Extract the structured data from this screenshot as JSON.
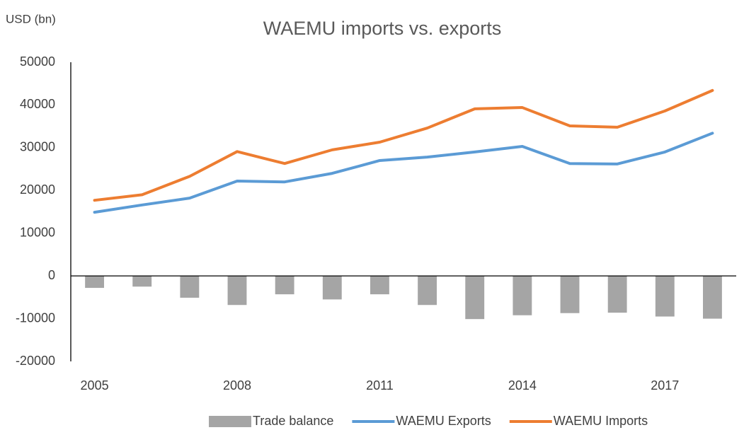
{
  "chart_data": {
    "type": "combo",
    "title": "WAEMU imports vs. exports",
    "y_axis_label": "USD (bn)",
    "categories": [
      "2005",
      null,
      null,
      "2008",
      null,
      null,
      "2011",
      null,
      null,
      "2014",
      null,
      null,
      "2017",
      null
    ],
    "series": [
      {
        "name": "Trade balance",
        "type": "bar",
        "color": "#a5a5a5",
        "values": [
          -2800,
          -2500,
          -5100,
          -6800,
          -4300,
          -5500,
          -4300,
          -6800,
          -10100,
          -9200,
          -8700,
          -8600,
          -9500,
          -10000
        ]
      },
      {
        "name": "WAEMU Exports",
        "type": "line",
        "color": "#5b9bd5",
        "values": [
          14900,
          16600,
          18200,
          22200,
          22000,
          24000,
          27000,
          27800,
          29000,
          30300,
          26300,
          26200,
          29000,
          33400
        ]
      },
      {
        "name": "WAEMU Imports",
        "type": "line",
        "color": "#ed7d31",
        "values": [
          17700,
          19000,
          23300,
          29100,
          26300,
          29500,
          31300,
          34600,
          39100,
          39400,
          35100,
          34800,
          38600,
          43400
        ]
      }
    ],
    "ylim": [
      -20000,
      50000
    ],
    "yticks": [
      -20000,
      -10000,
      0,
      10000,
      20000,
      30000,
      40000,
      50000
    ],
    "grid": false,
    "legend": "bottom"
  }
}
